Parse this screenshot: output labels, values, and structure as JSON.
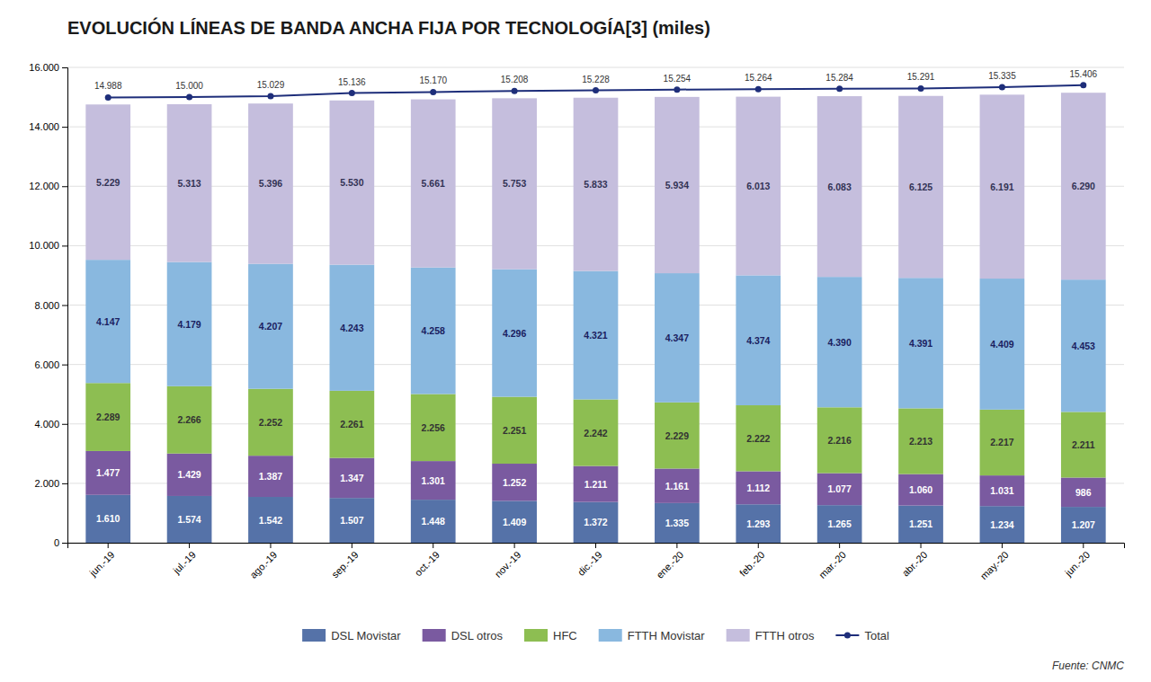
{
  "chart_data": {
    "type": "bar",
    "title": "EVOLUCIÓN LÍNEAS DE BANDA ANCHA FIJA POR TECNOLOGÍA[3] (miles)",
    "annotations": [
      "Fuente: CNMC"
    ],
    "categories": [
      "jun.-19",
      "jul.-19",
      "ago.-19",
      "sep.-19",
      "oct.-19",
      "nov.-19",
      "dic.-19",
      "ene.-20",
      "feb.-20",
      "mar.-20",
      "abr.-20",
      "may.-20",
      "jun.-20"
    ],
    "stacked": true,
    "data_labels": true,
    "grid": true,
    "legend": "bottom",
    "ylim": [
      0,
      16000
    ],
    "yticks": [
      0,
      {
        "value": 2000,
        "label": "2.000"
      },
      {
        "value": 4000,
        "label": "4.000"
      },
      {
        "value": 6000,
        "label": "6.000"
      },
      {
        "value": 8000,
        "label": "8.000"
      },
      {
        "value": 10000,
        "label": "10.000"
      },
      {
        "value": 12000,
        "label": "12.000"
      },
      {
        "value": 14000,
        "label": "14.000"
      },
      {
        "value": 16000,
        "label": "16.000"
      }
    ],
    "series": [
      {
        "name": "DSL Movistar",
        "type": "bar",
        "color": "#5572a8",
        "values": [
          1610,
          1574,
          1542,
          1507,
          1448,
          1409,
          1372,
          1335,
          1293,
          1265,
          1251,
          1234,
          1207
        ],
        "value_labels": [
          "1.610",
          "1.574",
          "1.542",
          "1.507",
          "1.448",
          "1.409",
          "1.372",
          "1.335",
          "1.293",
          "1.265",
          "1.251",
          "1.234",
          "1.207"
        ]
      },
      {
        "name": "DSL otros",
        "type": "bar",
        "color": "#7a5aa0",
        "values": [
          1477,
          1429,
          1387,
          1347,
          1301,
          1252,
          1211,
          1161,
          1112,
          1077,
          1060,
          1031,
          986
        ],
        "value_labels": [
          "1.477",
          "1.429",
          "1.387",
          "1.347",
          "1.301",
          "1.252",
          "1.211",
          "1.161",
          "1.112",
          "1.077",
          "1.060",
          "1.031",
          "986"
        ]
      },
      {
        "name": "HFC",
        "type": "bar",
        "color": "#8dbe52",
        "values": [
          2289,
          2266,
          2252,
          2261,
          2256,
          2251,
          2242,
          2229,
          2222,
          2216,
          2213,
          2217,
          2211
        ],
        "value_labels": [
          "2.289",
          "2.266",
          "2.252",
          "2.261",
          "2.256",
          "2.251",
          "2.242",
          "2.229",
          "2.222",
          "2.216",
          "2.213",
          "2.217",
          "2.211"
        ]
      },
      {
        "name": "FTTH Movistar",
        "type": "bar",
        "color": "#89b8df",
        "values": [
          4147,
          4179,
          4207,
          4243,
          4258,
          4296,
          4321,
          4347,
          4374,
          4390,
          4391,
          4409,
          4453
        ],
        "value_labels": [
          "4.147",
          "4.179",
          "4.207",
          "4.243",
          "4.258",
          "4.296",
          "4.321",
          "4.347",
          "4.374",
          "4.390",
          "4.391",
          "4.409",
          "4.453"
        ]
      },
      {
        "name": "FTTH otros",
        "type": "bar",
        "color": "#c5bedd",
        "values": [
          5229,
          5313,
          5396,
          5530,
          5661,
          5753,
          5833,
          5934,
          6013,
          6083,
          6125,
          6191,
          6290
        ],
        "value_labels": [
          "5.229",
          "5.313",
          "5.396",
          "5.530",
          "5.661",
          "5.753",
          "5.833",
          "5.934",
          "6.013",
          "6.083",
          "6.125",
          "6.191",
          "6.290"
        ]
      },
      {
        "name": "Total",
        "type": "line",
        "color": "#1e2e7a",
        "marker": "circle",
        "values": [
          14988,
          15000,
          15029,
          15136,
          15170,
          15208,
          15228,
          15254,
          15264,
          15284,
          15291,
          15335,
          15406
        ],
        "value_labels": [
          "14.988",
          "15.000",
          "15.029",
          "15.136",
          "15.170",
          "15.208",
          "15.228",
          "15.254",
          "15.264",
          "15.284",
          "15.291",
          "15.335",
          "15.406"
        ]
      }
    ]
  }
}
